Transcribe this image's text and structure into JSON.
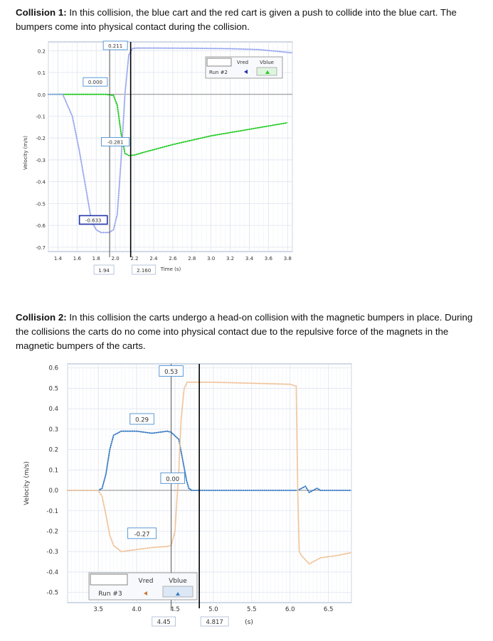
{
  "text": {
    "c1_title": "Collision 1:",
    "c1_body": " In this collision, the blue cart and the red cart is given a push to collide into the blue cart. The bumpers come into physical contact during the collision.",
    "c2_title": "Collision 2:",
    "c2_body": " In this collision the carts undergo a head-on collision with the magnetic bumpers in place. During the collisions the carts do no come into physical contact due to the repulsive force of the magnets in the magnetic bumpers of the carts."
  },
  "colors": {
    "green": "#22cc22",
    "light_blue": "#9aa8ee",
    "blue": "#3b7dc4",
    "orange": "#f0c49a",
    "orange_marker": "#c87a3a",
    "grid": "#dde3ee",
    "cursor": "#000000"
  },
  "chart_data": [
    {
      "type": "line",
      "xlabel": "Time (s)",
      "ylabel": "Velocity (m/s)",
      "xlim": [
        1.3,
        3.85
      ],
      "ylim": [
        -0.72,
        0.24
      ],
      "x_ticks": [
        "1.4",
        "1.6",
        "1.8",
        "2.0",
        "2.2",
        "2.4",
        "2.6",
        "2.8",
        "3.0",
        "3.2",
        "3.4",
        "3.6",
        "3.8"
      ],
      "y_ticks": [
        "0.2",
        "0.1",
        "0.0",
        "-0.1",
        "-0.2",
        "-0.3",
        "-0.4",
        "-0.5",
        "-0.6",
        "-0.7"
      ],
      "series": [
        {
          "label_key": "vred",
          "color": "#22cc22",
          "x": [
            1.3,
            1.6,
            1.8,
            1.9,
            1.98,
            2.02,
            2.06,
            2.1,
            2.14,
            2.2,
            2.3,
            2.6,
            3.0,
            3.4,
            3.8
          ],
          "y": [
            0.0,
            0.0,
            0.0,
            0.0,
            -0.005,
            -0.05,
            -0.18,
            -0.27,
            -0.28,
            -0.278,
            -0.265,
            -0.23,
            -0.19,
            -0.16,
            -0.13
          ]
        },
        {
          "label_key": "vblue",
          "color": "#9aa8ee",
          "x": [
            1.3,
            1.45,
            1.55,
            1.62,
            1.7,
            1.75,
            1.8,
            1.85,
            1.9,
            1.94,
            1.98,
            2.02,
            2.06,
            2.1,
            2.14,
            2.18,
            2.22,
            2.4,
            2.8,
            3.2,
            3.5,
            3.85
          ],
          "y": [
            0.0,
            0.0,
            -0.1,
            -0.25,
            -0.45,
            -0.58,
            -0.62,
            -0.633,
            -0.633,
            -0.632,
            -0.62,
            -0.55,
            -0.3,
            0.0,
            0.18,
            0.21,
            0.212,
            0.212,
            0.211,
            0.209,
            0.205,
            0.19
          ]
        }
      ],
      "readouts": [
        {
          "text": "0.211",
          "x": 2.0,
          "y": 0.224
        },
        {
          "text": "0.000",
          "x": 1.79,
          "y": 0.057
        },
        {
          "text": "-0.281",
          "x": 2.0,
          "y": -0.217
        },
        {
          "text": "-0.633",
          "x": 1.77,
          "y": -0.575
        }
      ],
      "cursor_x": [
        1.94,
        2.16
      ],
      "cursor_labels": [
        "1.94",
        "2.160"
      ],
      "legend": {
        "run": "Run #2",
        "vred": "Vred",
        "vblue": "Vblue"
      }
    },
    {
      "type": "line",
      "xlabel": "(s)",
      "ylabel": "Velocity (m/s)",
      "xlim": [
        3.1,
        6.8
      ],
      "ylim": [
        -0.55,
        0.62
      ],
      "x_ticks": [
        "3.5",
        "4.0",
        "4.5",
        "5.0",
        "5.5",
        "6.0",
        "6.5"
      ],
      "y_ticks": [
        "0.6",
        "0.5",
        "0.4",
        "0.3",
        "0.2",
        "0.1",
        "0.0",
        "-0.1",
        "-0.2",
        "-0.3",
        "-0.4",
        "-0.5"
      ],
      "series": [
        {
          "label_key": "vblue",
          "color": "#3b7dc4",
          "x": [
            3.1,
            3.5,
            3.55,
            3.6,
            3.65,
            3.7,
            3.8,
            4.0,
            4.2,
            4.4,
            4.45,
            4.55,
            4.6,
            4.65,
            4.68,
            4.72,
            4.8,
            5.0,
            5.5,
            6.0,
            6.1,
            6.15,
            6.2,
            6.25,
            6.3,
            6.35,
            6.4,
            6.5,
            6.8
          ],
          "y": [
            0.0,
            0.0,
            0.01,
            0.08,
            0.2,
            0.27,
            0.29,
            0.29,
            0.28,
            0.29,
            0.285,
            0.25,
            0.15,
            0.05,
            0.01,
            0.0,
            0.0,
            0.0,
            0.0,
            0.0,
            0.0,
            0.01,
            0.02,
            -0.01,
            0.0,
            0.01,
            0.0,
            0.0,
            0.0
          ]
        },
        {
          "label_key": "vred",
          "color": "#f0c49a",
          "x": [
            3.1,
            3.5,
            3.55,
            3.6,
            3.65,
            3.7,
            3.8,
            4.0,
            4.2,
            4.4,
            4.45,
            4.5,
            4.55,
            4.58,
            4.62,
            4.66,
            4.72,
            5.0,
            5.5,
            6.0,
            6.08,
            6.1,
            6.12,
            6.15,
            6.25,
            6.4,
            6.6,
            6.8
          ],
          "y": [
            0.0,
            0.0,
            -0.03,
            -0.12,
            -0.22,
            -0.27,
            -0.3,
            -0.29,
            -0.28,
            -0.275,
            -0.27,
            -0.2,
            0.1,
            0.35,
            0.5,
            0.53,
            0.53,
            0.53,
            0.525,
            0.52,
            0.51,
            0.0,
            -0.3,
            -0.32,
            -0.36,
            -0.33,
            -0.32,
            -0.305
          ]
        }
      ],
      "readouts": [
        {
          "text": "0.53",
          "x": 4.45,
          "y": 0.585
        },
        {
          "text": "0.29",
          "x": 4.07,
          "y": 0.35
        },
        {
          "text": "0.00",
          "x": 4.47,
          "y": 0.06
        },
        {
          "text": "-0.27",
          "x": 4.07,
          "y": -0.21
        }
      ],
      "cursor_x": [
        4.45,
        4.817
      ],
      "cursor_labels": [
        "4.45",
        "4.817"
      ],
      "legend": {
        "run": "Run #3",
        "vred": "Vred",
        "vblue": "Vblue"
      }
    }
  ]
}
